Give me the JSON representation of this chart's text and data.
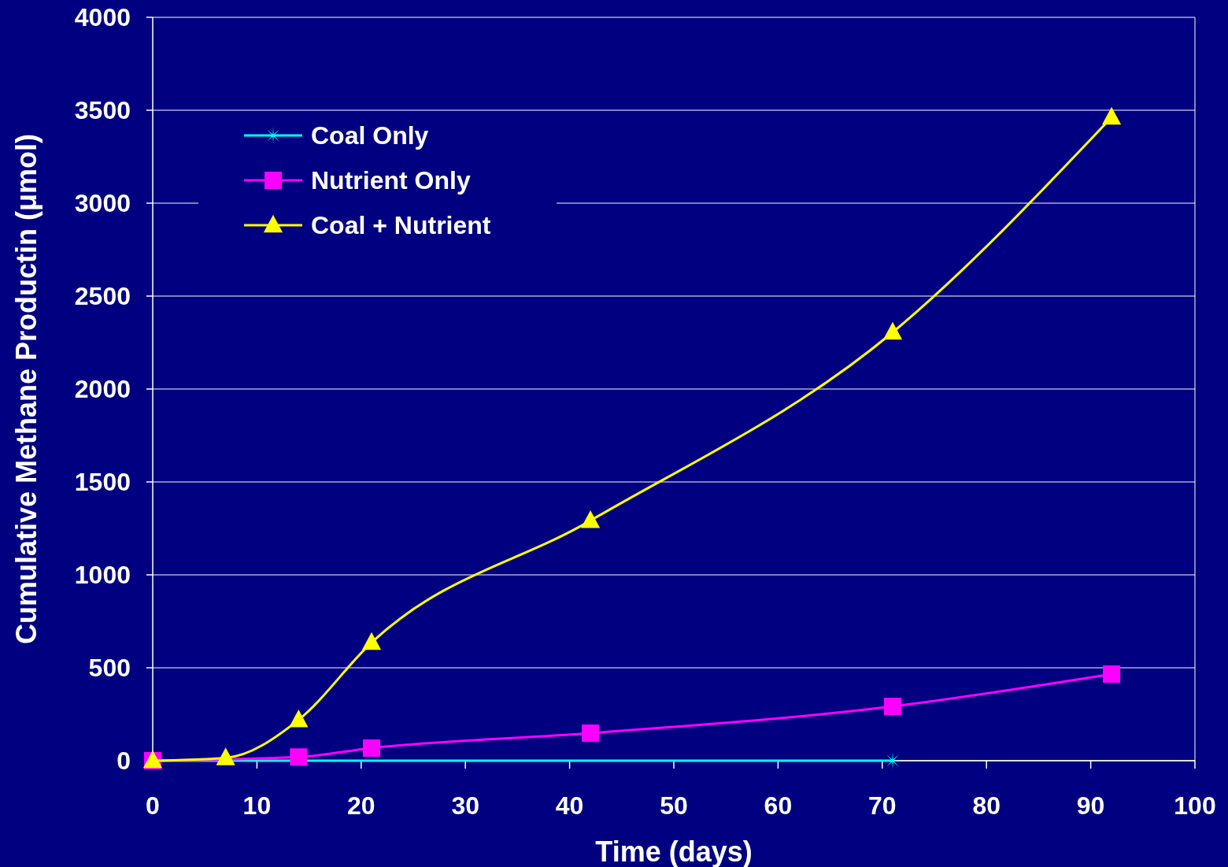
{
  "chart_data": {
    "type": "line",
    "xlabel": "Time (days)",
    "ylabel": "Cumulative Methane Productin (μmol)",
    "xlim": [
      0,
      100
    ],
    "xticks": [
      0,
      10,
      20,
      30,
      40,
      50,
      60,
      70,
      80,
      90,
      100
    ],
    "ylim": [
      0,
      4000
    ],
    "yticks": [
      0,
      500,
      1000,
      1500,
      2000,
      2500,
      3000,
      3500,
      4000
    ],
    "grid": "y",
    "legend": "top left",
    "line_style": "solid",
    "series": [
      {
        "name": "Coal Only",
        "color": "#00ffff",
        "marker": "star",
        "x": [
          0,
          7,
          14,
          71
        ],
        "values": [
          0,
          null,
          null,
          0
        ]
      },
      {
        "name": "Nutrient Only",
        "color": "#ff00ff",
        "marker": "square",
        "x": [
          0,
          7,
          14,
          21,
          42,
          71,
          92
        ],
        "values": [
          0,
          null,
          20,
          68,
          148,
          292,
          466
        ]
      },
      {
        "name": "Coal + Nutrient",
        "color": "#ffff00",
        "marker": "triangle",
        "x": [
          0,
          7,
          14,
          21,
          42,
          71,
          92
        ],
        "values": [
          0,
          15,
          220,
          636,
          1292,
          2305,
          3462
        ]
      }
    ]
  }
}
